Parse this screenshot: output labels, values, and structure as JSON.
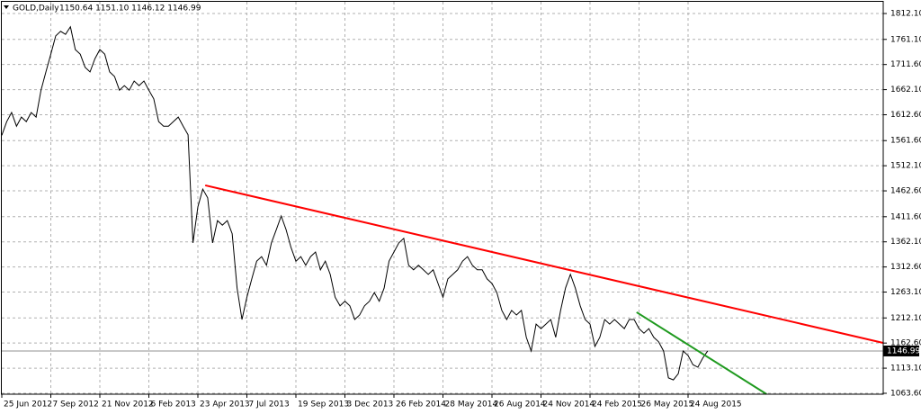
{
  "chart_data": {
    "type": "line",
    "title": "GOLD,Daily",
    "subtitle": "1150.64 1151.10 1146.12 1146.99",
    "color": "#000000",
    "grid": true,
    "ylim": [
      1061.8,
      1835.2
    ],
    "yticks": [
      {
        "value": 1812.1,
        "label": "1812.10"
      },
      {
        "value": 1761.1,
        "label": "1761.10"
      },
      {
        "value": 1711.6,
        "label": "1711.60"
      },
      {
        "value": 1662.1,
        "label": "1662.10"
      },
      {
        "value": 1612.6,
        "label": "1612.60"
      },
      {
        "value": 1561.6,
        "label": "1561.60"
      },
      {
        "value": 1512.1,
        "label": "1512.10"
      },
      {
        "value": 1462.6,
        "label": "1462.60"
      },
      {
        "value": 1411.6,
        "label": "1411.60"
      },
      {
        "value": 1362.1,
        "label": "1362.10"
      },
      {
        "value": 1312.6,
        "label": "1312.60"
      },
      {
        "value": 1263.1,
        "label": "1263.10"
      },
      {
        "value": 1212.1,
        "label": "1212.10"
      },
      {
        "value": 1162.6,
        "label": "1162.60"
      },
      {
        "value": 1113.1,
        "label": "1113.10"
      },
      {
        "value": 1063.6,
        "label": "1063.60"
      }
    ],
    "last_price": {
      "value": 1146.99,
      "label": "1146.99"
    },
    "categories": [
      "25 Jun 2012",
      null,
      null,
      null,
      null,
      null,
      null,
      null,
      null,
      null,
      "7 Sep 2012",
      null,
      null,
      null,
      null,
      null,
      null,
      null,
      null,
      null,
      "21 Nov 2012",
      null,
      null,
      null,
      null,
      null,
      null,
      null,
      null,
      null,
      "6 Feb 2013",
      null,
      null,
      null,
      null,
      null,
      null,
      null,
      null,
      null,
      "23 Apr 2013",
      null,
      null,
      null,
      null,
      null,
      null,
      null,
      null,
      null,
      "7 Jul 2013",
      null,
      null,
      null,
      null,
      null,
      null,
      null,
      null,
      null,
      "19 Sep 2013",
      null,
      null,
      null,
      null,
      null,
      null,
      null,
      null,
      null,
      "3 Dec 2013",
      null,
      null,
      null,
      null,
      null,
      null,
      null,
      null,
      null,
      "26 Feb 2014",
      null,
      null,
      null,
      null,
      null,
      null,
      null,
      null,
      null,
      "28 May 2014",
      null,
      null,
      null,
      null,
      null,
      null,
      null,
      null,
      null,
      "26 Aug 2014",
      null,
      null,
      null,
      null,
      null,
      null,
      null,
      null,
      null,
      "24 Nov 2014",
      null,
      null,
      null,
      null,
      null,
      null,
      null,
      null,
      null,
      "24 Feb 2015",
      null,
      null,
      null,
      null,
      null,
      null,
      null,
      null,
      null,
      "26 May 2015",
      null,
      null,
      null,
      null,
      null,
      null,
      null,
      null,
      null,
      "24 Aug 2015",
      null,
      null,
      null,
      null
    ],
    "values": [
      1572,
      1599,
      1617,
      1590,
      1608,
      1599,
      1617,
      1608,
      1661,
      1697,
      1732,
      1768,
      1777,
      1771,
      1786,
      1741,
      1732,
      1706,
      1697,
      1723,
      1741,
      1732,
      1697,
      1688,
      1661,
      1670,
      1661,
      1679,
      1670,
      1679,
      1661,
      1644,
      1599,
      1590,
      1590,
      1599,
      1608,
      1590,
      1573,
      1360,
      1431,
      1466,
      1449,
      1360,
      1404,
      1395,
      1404,
      1378,
      1271,
      1209,
      1253,
      1289,
      1324,
      1333,
      1316,
      1360,
      1386,
      1413,
      1386,
      1351,
      1324,
      1333,
      1316,
      1333,
      1342,
      1307,
      1324,
      1298,
      1253,
      1236,
      1245,
      1236,
      1209,
      1218,
      1236,
      1245,
      1262,
      1245,
      1271,
      1324,
      1342,
      1360,
      1369,
      1316,
      1307,
      1316,
      1307,
      1298,
      1307,
      1280,
      1253,
      1289,
      1298,
      1307,
      1324,
      1333,
      1316,
      1307,
      1307,
      1289,
      1280,
      1262,
      1227,
      1209,
      1227,
      1218,
      1227,
      1174,
      1147,
      1200,
      1191,
      1200,
      1209,
      1174,
      1227,
      1271,
      1298,
      1271,
      1236,
      1209,
      1200,
      1156,
      1174,
      1209,
      1200,
      1209,
      1200,
      1191,
      1209,
      1209,
      1191,
      1182,
      1191,
      1174,
      1165,
      1147,
      1094,
      1090,
      1102,
      1147,
      1138,
      1120,
      1115,
      1133,
      1147
    ],
    "trendlines": [
      {
        "color": "#ff0000",
        "x": [
          41.5,
          179.8
        ],
        "y": [
          1473.4,
          1162.9
        ]
      },
      {
        "color": "#1f9a1f",
        "x": [
          129.5,
          156
        ],
        "y": [
          1223.3,
          1062
        ]
      }
    ]
  }
}
